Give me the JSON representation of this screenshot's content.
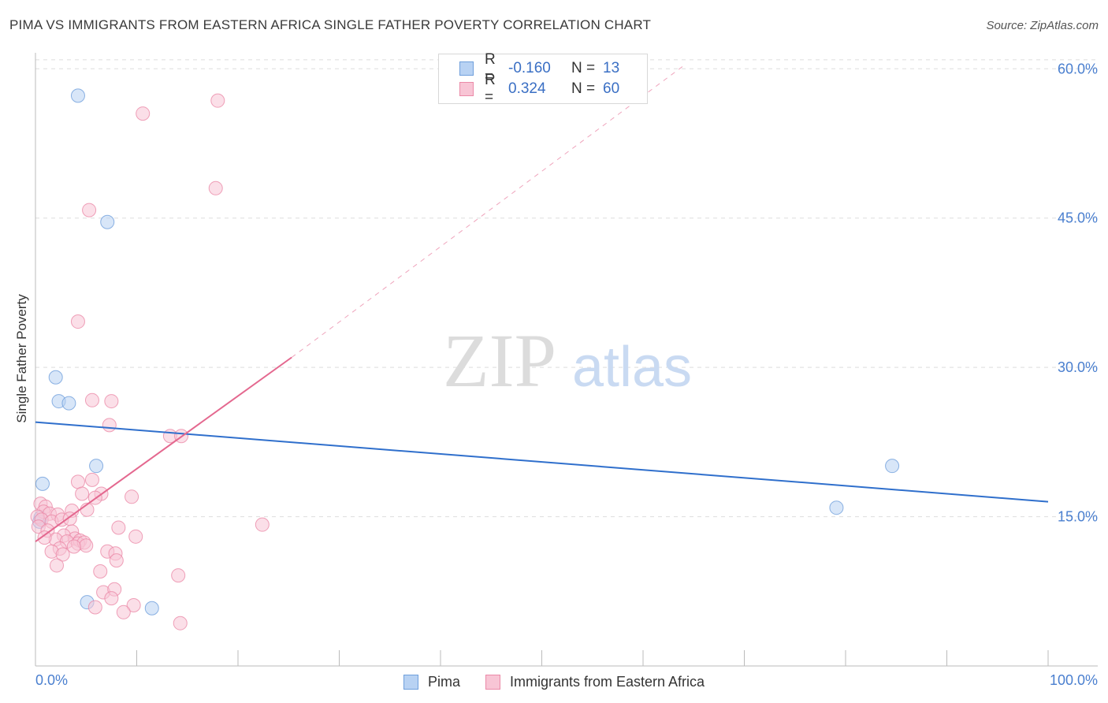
{
  "title": "PIMA VS IMMIGRANTS FROM EASTERN AFRICA SINGLE FATHER POVERTY CORRELATION CHART",
  "source": "Source: ZipAtlas.com",
  "watermark": {
    "zip": "ZIP",
    "atlas": "atlas"
  },
  "legend_top": {
    "rows": [
      {
        "r_label": "R =",
        "r_value": "-0.160",
        "n_label": "N =",
        "n_value": "13"
      },
      {
        "r_label": "R =",
        "r_value": "0.324",
        "n_label": "N =",
        "n_value": "60"
      }
    ]
  },
  "colors": {
    "pima_fill": "#b8d2f3",
    "pima_stroke": "#6f9fdc",
    "pima_line": "#2f6fcc",
    "africa_fill": "#f8c5d5",
    "africa_stroke": "#eb8aa8",
    "africa_line": "#e4688f",
    "grid": "#dddddd",
    "tick_label": "#4a7fcf"
  },
  "chart_data": {
    "type": "scatter",
    "title": "PIMA VS IMMIGRANTS FROM EASTERN AFRICA SINGLE FATHER POVERTY CORRELATION CHART",
    "xlabel": "",
    "ylabel": "Single Father Poverty",
    "xlim": [
      0,
      100
    ],
    "ylim": [
      0,
      62
    ],
    "x_tick_labels": [
      {
        "value": 0,
        "label": "0.0%"
      },
      {
        "value": 100,
        "label": "100.0%"
      }
    ],
    "y_ticks": [
      {
        "value": 15,
        "label": "15.0%"
      },
      {
        "value": 30,
        "label": "30.0%"
      },
      {
        "value": 45,
        "label": "45.0%"
      },
      {
        "value": 60,
        "label": "60.0%"
      }
    ],
    "series": [
      {
        "name": "Pima",
        "r": -0.16,
        "n": 13,
        "trend": {
          "x0": 0,
          "y0": 24.5,
          "x1": 100,
          "y1": 16.5
        },
        "points": [
          [
            4.2,
            57.3
          ],
          [
            7.1,
            44.6
          ],
          [
            2.0,
            29.0
          ],
          [
            2.3,
            26.6
          ],
          [
            3.3,
            26.4
          ],
          [
            6.0,
            20.1
          ],
          [
            0.7,
            18.3
          ],
          [
            0.5,
            14.9
          ],
          [
            0.4,
            14.5
          ],
          [
            5.1,
            6.4
          ],
          [
            11.5,
            5.8
          ],
          [
            79.1,
            15.9
          ],
          [
            84.6,
            20.1
          ]
        ]
      },
      {
        "name": "Immigrants from Eastern Africa",
        "r": 0.324,
        "n": 60,
        "trend": {
          "x0": 0,
          "y0": 12.5,
          "x1": 25.3,
          "y1": 31.0
        },
        "trend_extension": {
          "x0": 25.3,
          "y0": 31.0,
          "x1": 64.0,
          "y1": 60.3
        },
        "points": [
          [
            18.0,
            56.8
          ],
          [
            10.6,
            55.5
          ],
          [
            17.8,
            48.0
          ],
          [
            5.3,
            45.8
          ],
          [
            4.2,
            34.6
          ],
          [
            5.6,
            26.7
          ],
          [
            7.5,
            26.6
          ],
          [
            7.3,
            24.2
          ],
          [
            13.3,
            23.1
          ],
          [
            14.4,
            23.1
          ],
          [
            4.2,
            18.5
          ],
          [
            5.6,
            18.7
          ],
          [
            4.6,
            17.3
          ],
          [
            6.5,
            17.3
          ],
          [
            9.5,
            17.0
          ],
          [
            5.9,
            16.9
          ],
          [
            0.5,
            16.3
          ],
          [
            1.0,
            16.0
          ],
          [
            0.8,
            15.5
          ],
          [
            1.4,
            15.3
          ],
          [
            2.2,
            15.2
          ],
          [
            3.6,
            15.6
          ],
          [
            5.1,
            15.7
          ],
          [
            0.2,
            15.0
          ],
          [
            0.6,
            14.7
          ],
          [
            1.6,
            14.5
          ],
          [
            2.6,
            14.7
          ],
          [
            3.4,
            14.8
          ],
          [
            0.3,
            14.0
          ],
          [
            1.2,
            13.6
          ],
          [
            3.6,
            13.5
          ],
          [
            2.8,
            13.1
          ],
          [
            3.9,
            12.8
          ],
          [
            4.4,
            12.6
          ],
          [
            2.0,
            12.7
          ],
          [
            3.1,
            12.5
          ],
          [
            4.2,
            12.3
          ],
          [
            4.8,
            12.4
          ],
          [
            5.0,
            12.1
          ],
          [
            3.8,
            12.0
          ],
          [
            2.4,
            11.8
          ],
          [
            1.6,
            11.5
          ],
          [
            2.7,
            11.2
          ],
          [
            8.2,
            13.9
          ],
          [
            9.9,
            13.0
          ],
          [
            22.4,
            14.2
          ],
          [
            7.1,
            11.5
          ],
          [
            7.9,
            11.3
          ],
          [
            8.0,
            10.6
          ],
          [
            6.4,
            9.5
          ],
          [
            2.1,
            10.1
          ],
          [
            14.1,
            9.1
          ],
          [
            6.7,
            7.4
          ],
          [
            7.8,
            7.7
          ],
          [
            7.5,
            6.8
          ],
          [
            5.9,
            5.9
          ],
          [
            9.7,
            6.1
          ],
          [
            8.7,
            5.4
          ],
          [
            14.3,
            4.3
          ],
          [
            0.9,
            12.9
          ]
        ]
      }
    ]
  }
}
